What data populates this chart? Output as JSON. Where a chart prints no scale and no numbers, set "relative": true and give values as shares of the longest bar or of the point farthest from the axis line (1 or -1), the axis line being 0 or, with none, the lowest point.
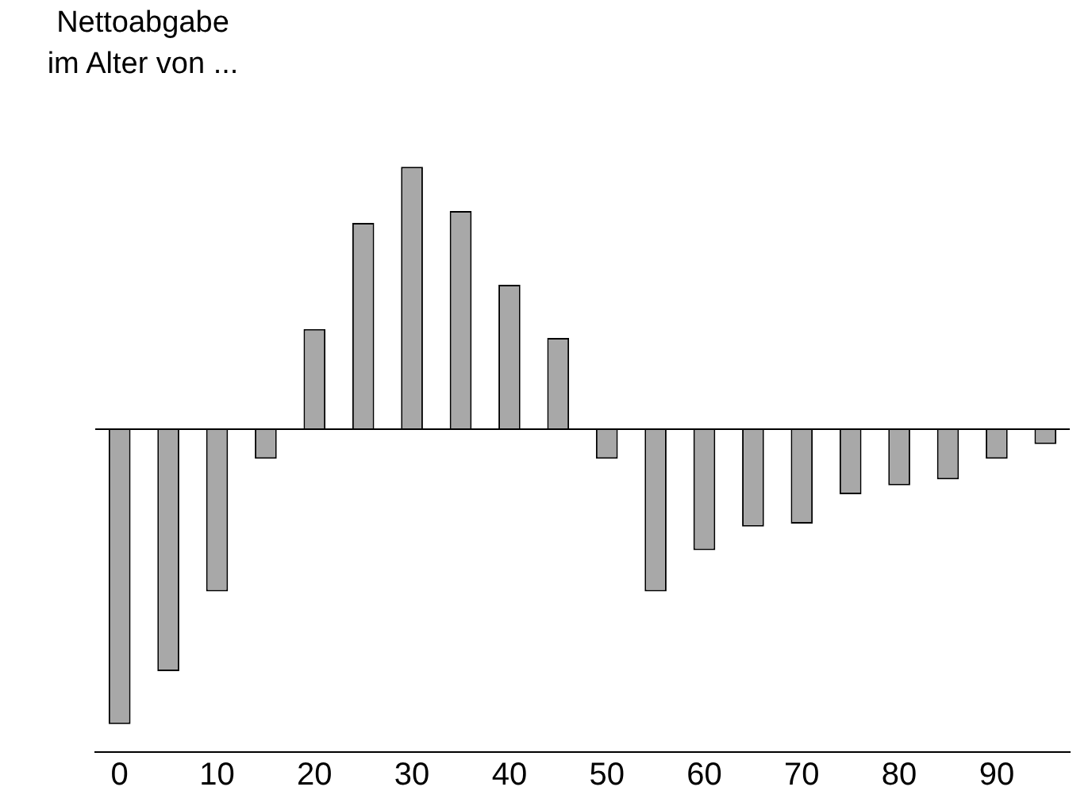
{
  "chart_data": {
    "type": "bar",
    "ylabel": "Nettoabgabe\nim Alter von ...",
    "relative": true,
    "color": "#a8a8a8",
    "categories": [
      "0",
      null,
      "10",
      null,
      "20",
      null,
      "30",
      null,
      "40",
      null,
      "50",
      null,
      "60",
      null,
      "70",
      null,
      "80",
      null,
      "90",
      null
    ],
    "values": [
      -1,
      -0.82,
      -0.55,
      -0.1,
      0.34,
      0.7,
      0.89,
      0.74,
      0.49,
      0.31,
      -0.1,
      -0.55,
      -0.41,
      -0.33,
      -0.32,
      -0.22,
      -0.19,
      -0.17,
      -0.1,
      -0.05
    ],
    "grid": false,
    "legend": false
  }
}
